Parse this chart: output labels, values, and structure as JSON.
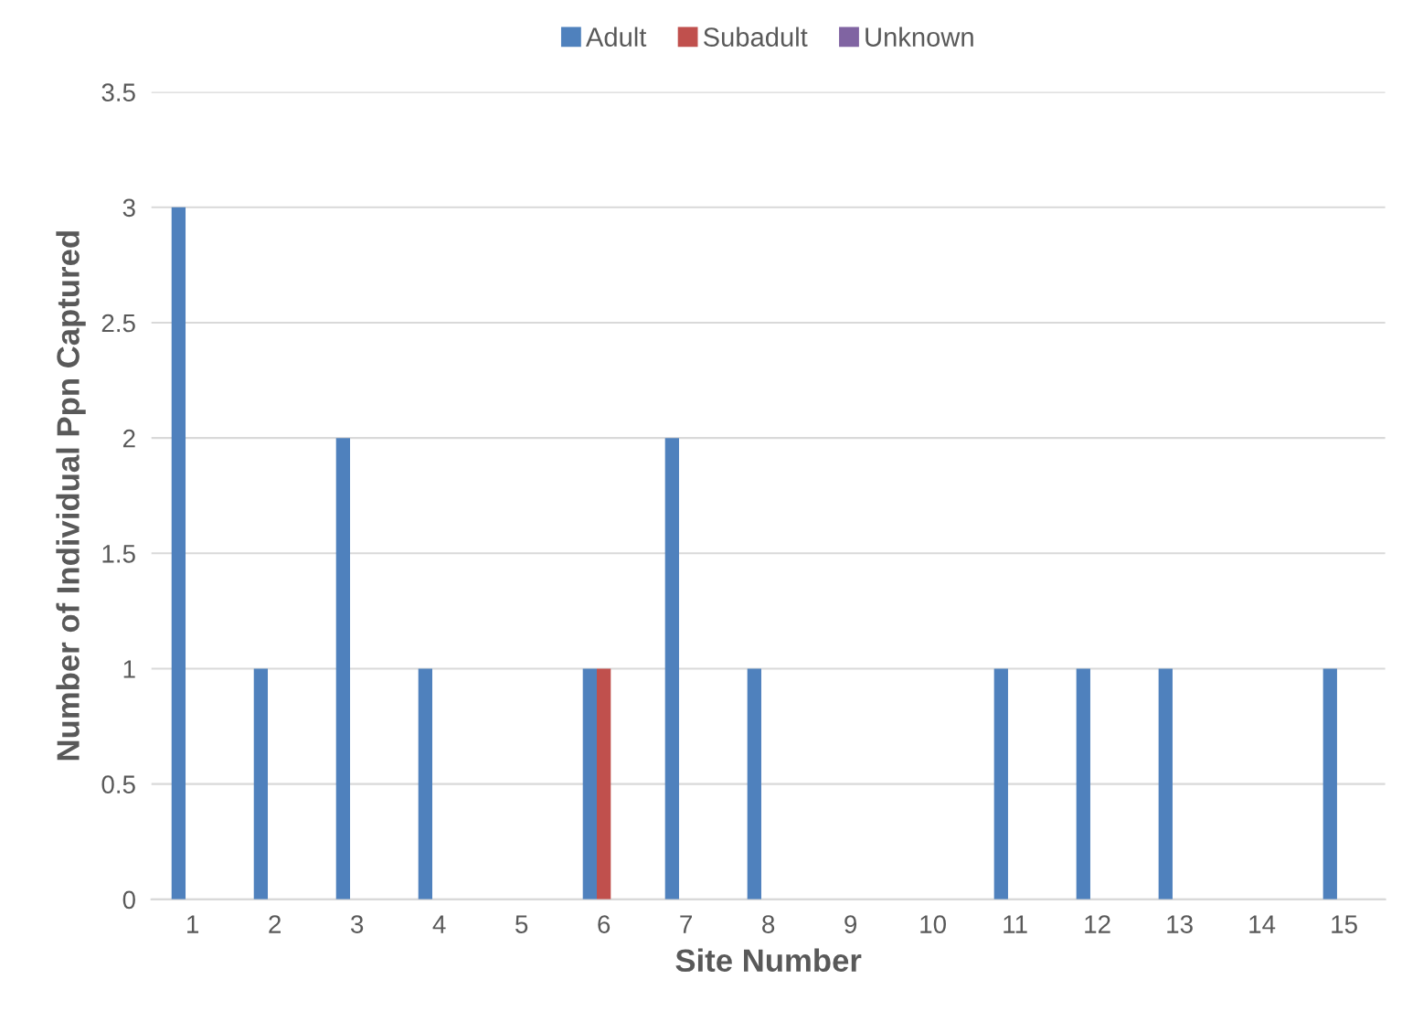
{
  "chart_data": {
    "type": "bar",
    "xlabel": "Site Number",
    "ylabel": "Number of Individual Ppn Captured",
    "categories": [
      "1",
      "2",
      "3",
      "4",
      "5",
      "6",
      "7",
      "8",
      "9",
      "10",
      "11",
      "12",
      "13",
      "14",
      "15"
    ],
    "series": [
      {
        "name": "Adult",
        "color": "#4f81bd",
        "values": [
          3,
          1,
          2,
          1,
          0,
          1,
          2,
          1,
          0,
          0,
          1,
          1,
          1,
          0,
          1
        ]
      },
      {
        "name": "Subadult",
        "color": "#c0504d",
        "values": [
          0,
          0,
          0,
          0,
          0,
          1,
          0,
          0,
          0,
          0,
          0,
          0,
          0,
          0,
          0
        ]
      },
      {
        "name": "Unknown",
        "color": "#8064a2",
        "values": [
          0,
          0,
          0,
          0,
          0,
          0,
          0,
          0,
          0,
          0,
          0,
          0,
          0,
          0,
          0
        ]
      }
    ],
    "ylim": [
      0,
      3.5
    ],
    "yticks": [
      0,
      0.5,
      1,
      1.5,
      2,
      2.5,
      3,
      3.5
    ],
    "grid": "y",
    "legend": "top"
  }
}
